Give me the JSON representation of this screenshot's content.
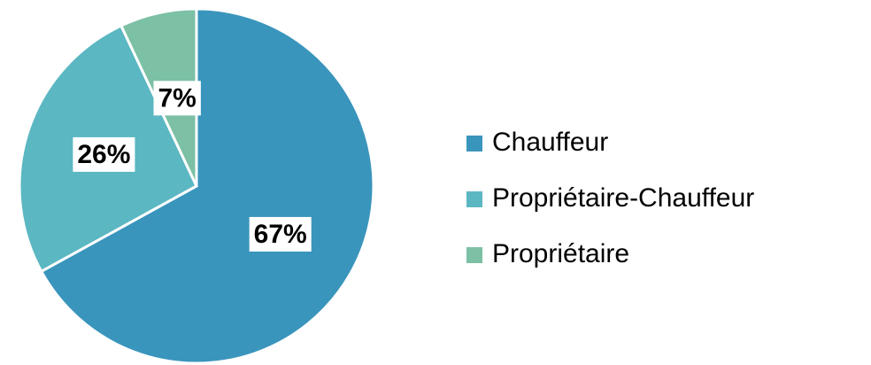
{
  "chart_data": {
    "type": "pie",
    "categories": [
      "Chauffeur",
      "Propriétaire-Chauffeur",
      "Propriétaire"
    ],
    "values": [
      67,
      26,
      7
    ],
    "value_labels": [
      "67%",
      "26%",
      "7%"
    ],
    "colors": [
      "#3a95bc",
      "#5bb7c2",
      "#7cc0a5"
    ],
    "legend": "right"
  }
}
